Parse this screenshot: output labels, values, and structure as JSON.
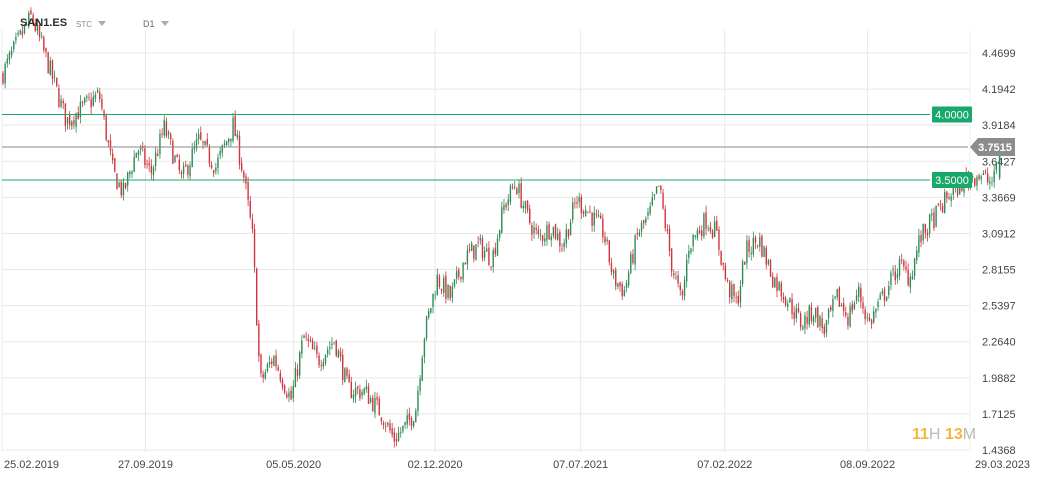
{
  "header": {
    "symbol": "SAN1.ES",
    "chart_type": "STC",
    "timeframe": "D1"
  },
  "timer": {
    "hours": "11",
    "hours_unit": "H",
    "minutes": "13",
    "minutes_unit": "M"
  },
  "colors": {
    "up_candle": "#2e8b57",
    "down_candle": "#d0343c",
    "level_line": "#18a86b",
    "current_price_line": "#8a8a8a",
    "grid": "#e8e8e8"
  },
  "chart_data": {
    "type": "candlestick",
    "title": "",
    "xlabel": "",
    "ylabel": "",
    "ylim": [
      1.4368,
      4.9
    ],
    "y_ticks": [
      "4.4699",
      "4.1942",
      "3.9184",
      "3.6427",
      "3.3669",
      "3.0912",
      "2.8155",
      "2.5397",
      "2.2640",
      "1.9882",
      "1.7125",
      "1.4368"
    ],
    "x_ticks": [
      "25.02.2019",
      "27.09.2019",
      "05.05.2020",
      "02.12.2020",
      "07.07.2021",
      "07.02.2022",
      "08.09.2022",
      "29.03.2023"
    ],
    "x_range": [
      "25.02.2019",
      "29.03.2023"
    ],
    "grid": true,
    "levels": [
      {
        "price": 4.0,
        "label": "4.0000"
      },
      {
        "price": 3.5,
        "label": "3.5000"
      }
    ],
    "current_price": {
      "price": 3.7515,
      "label": "3.7515"
    },
    "close_path": [
      [
        "2019-02-25",
        4.3
      ],
      [
        "2019-03-20",
        4.55
      ],
      [
        "2019-04-10",
        4.75
      ],
      [
        "2019-05-05",
        4.38
      ],
      [
        "2019-06-01",
        3.95
      ],
      [
        "2019-06-25",
        4.05
      ],
      [
        "2019-07-20",
        4.15
      ],
      [
        "2019-08-10",
        3.55
      ],
      [
        "2019-08-25",
        3.4
      ],
      [
        "2019-09-15",
        3.75
      ],
      [
        "2019-10-05",
        3.55
      ],
      [
        "2019-10-25",
        3.9
      ],
      [
        "2019-11-20",
        3.5
      ],
      [
        "2019-12-15",
        3.8
      ],
      [
        "2020-01-10",
        3.6
      ],
      [
        "2020-02-05",
        3.92
      ],
      [
        "2020-02-20",
        3.55
      ],
      [
        "2020-03-05",
        3.05
      ],
      [
        "2020-03-16",
        1.95
      ],
      [
        "2020-04-05",
        2.15
      ],
      [
        "2020-05-01",
        1.82
      ],
      [
        "2020-05-20",
        2.3
      ],
      [
        "2020-06-10",
        2.12
      ],
      [
        "2020-07-05",
        2.28
      ],
      [
        "2020-07-25",
        1.9
      ],
      [
        "2020-08-20",
        1.88
      ],
      [
        "2020-09-15",
        1.7
      ],
      [
        "2020-10-01",
        1.52
      ],
      [
        "2020-10-20",
        1.62
      ],
      [
        "2020-11-03",
        1.75
      ],
      [
        "2020-11-15",
        2.3
      ],
      [
        "2020-12-05",
        2.75
      ],
      [
        "2020-12-25",
        2.6
      ],
      [
        "2021-01-15",
        2.9
      ],
      [
        "2021-02-05",
        3.0
      ],
      [
        "2021-02-25",
        2.9
      ],
      [
        "2021-03-15",
        3.3
      ],
      [
        "2021-04-01",
        3.48
      ],
      [
        "2021-04-20",
        3.2
      ],
      [
        "2021-05-05",
        3.05
      ],
      [
        "2021-05-25",
        3.15
      ],
      [
        "2021-06-10",
        3.0
      ],
      [
        "2021-07-01",
        3.35
      ],
      [
        "2021-07-20",
        3.25
      ],
      [
        "2021-08-10",
        3.1
      ],
      [
        "2021-08-25",
        2.75
      ],
      [
        "2021-09-10",
        2.65
      ],
      [
        "2021-10-01",
        3.1
      ],
      [
        "2021-10-15",
        3.2
      ],
      [
        "2021-11-01",
        3.45
      ],
      [
        "2021-11-20",
        2.85
      ],
      [
        "2021-12-05",
        2.55
      ],
      [
        "2021-12-15",
        3.0
      ],
      [
        "2022-01-10",
        3.2
      ],
      [
        "2022-01-25",
        3.1
      ],
      [
        "2022-02-10",
        2.7
      ],
      [
        "2022-02-25",
        2.55
      ],
      [
        "2022-03-10",
        2.95
      ],
      [
        "2022-03-30",
        3.05
      ],
      [
        "2022-04-20",
        2.75
      ],
      [
        "2022-05-10",
        2.6
      ],
      [
        "2022-06-01",
        2.4
      ],
      [
        "2022-06-20",
        2.5
      ],
      [
        "2022-07-05",
        2.35
      ],
      [
        "2022-07-25",
        2.6
      ],
      [
        "2022-08-10",
        2.45
      ],
      [
        "2022-08-25",
        2.65
      ],
      [
        "2022-09-10",
        2.4
      ],
      [
        "2022-09-25",
        2.55
      ],
      [
        "2022-10-10",
        2.7
      ],
      [
        "2022-10-25",
        2.85
      ],
      [
        "2022-11-10",
        2.75
      ],
      [
        "2022-11-25",
        3.05
      ],
      [
        "2022-12-15",
        3.2
      ],
      [
        "2023-01-10",
        3.4
      ],
      [
        "2023-02-01",
        3.5
      ],
      [
        "2023-02-20",
        3.55
      ],
      [
        "2023-03-10",
        3.48
      ],
      [
        "2023-03-16",
        3.5
      ],
      [
        "2023-03-21",
        3.7515
      ]
    ]
  }
}
